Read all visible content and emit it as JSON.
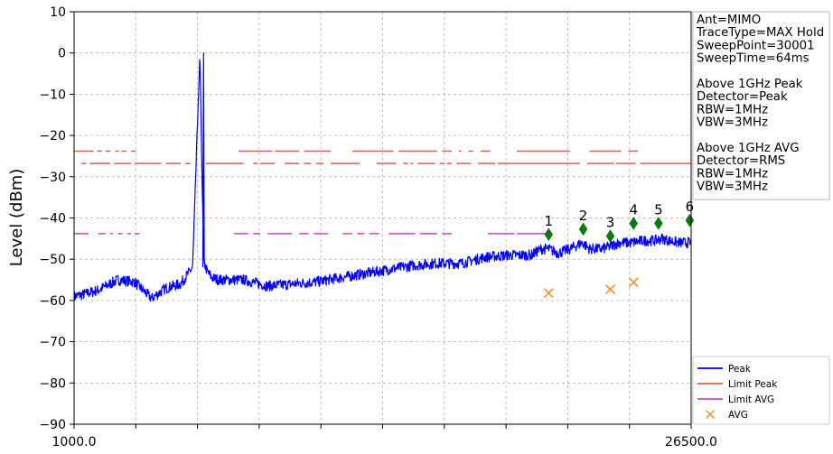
{
  "chart_data": {
    "type": "line",
    "ylabel": "Level (dBm)",
    "xlabel": "",
    "xlim": [
      1000.0,
      26500.0
    ],
    "ylim": [
      -90,
      10
    ],
    "yticks": [
      10,
      0,
      -10,
      -20,
      -30,
      -40,
      -50,
      -60,
      -70,
      -80,
      -90
    ],
    "ytick_labels": [
      "10",
      "0",
      "−10",
      "−20",
      "−30",
      "−40",
      "−50",
      "−60",
      "−70",
      "−80",
      "−90"
    ],
    "xticks": [
      1000.0,
      26500.0
    ],
    "xtick_labels": [
      "1000.0",
      "26500.0"
    ],
    "grid": true,
    "legend_position": "bottom-right",
    "colors": {
      "peak": "#0000ff",
      "limit_peak": "#ff4d4d",
      "limit_avg": "#cc44cc",
      "avg": "#ff8c1a",
      "marker": "#0a7a0a",
      "grid": "#b0b0b0"
    },
    "series": [
      {
        "name": "Peak",
        "kind": "line",
        "x": [
          1000,
          1400,
          2000,
          2800,
          3500,
          4200,
          4800,
          5400,
          5900,
          6200,
          6350,
          6500,
          6700,
          7000,
          8000,
          9000,
          10000,
          11000,
          12000,
          13000,
          14000,
          15000,
          16000,
          17000,
          18000,
          19000,
          19900,
          20300,
          20600,
          21000,
          21500,
          22000,
          22300,
          22800,
          23100,
          23500,
          24000,
          24500,
          25000,
          25300,
          25600,
          26000,
          26500
        ],
        "y": [
          -59,
          -58.5,
          -57.5,
          -55,
          -55.5,
          -59.5,
          -57,
          -56,
          -52,
          0,
          -50.5,
          -53,
          -54.5,
          -55,
          -55,
          -56.5,
          -56,
          -55.5,
          -54.5,
          -53.5,
          -52.5,
          -51.5,
          -51,
          -51,
          -49.5,
          -49,
          -49,
          -47.5,
          -47.5,
          -48.5,
          -47.5,
          -46,
          -47.5,
          -47.5,
          -47,
          -46,
          -46,
          -45.5,
          -45.5,
          -45,
          -45.5,
          -46,
          -46
        ]
      },
      {
        "name": "Limit Peak",
        "kind": "hline_segments",
        "levels": [
          -23.8,
          -26.8
        ]
      },
      {
        "name": "Limit AVG",
        "kind": "hline_segments",
        "levels": [
          -43.8
        ]
      },
      {
        "name": "AVG",
        "kind": "scatter",
        "points": [
          [
            20610,
            -58.2
          ],
          [
            23160,
            -57.3
          ],
          [
            24120,
            -55.6
          ]
        ]
      }
    ],
    "markers": [
      {
        "label": "1",
        "x": 20610,
        "y": -44.0
      },
      {
        "label": "2",
        "x": 22040,
        "y": -42.7
      },
      {
        "label": "3",
        "x": 23160,
        "y": -44.4
      },
      {
        "label": "4",
        "x": 24120,
        "y": -41.3
      },
      {
        "label": "5",
        "x": 25150,
        "y": -41.3
      },
      {
        "label": "6",
        "x": 26440,
        "y": -40.6
      }
    ],
    "legend": [
      {
        "label": "Peak",
        "key": "peak",
        "style": "line"
      },
      {
        "label": "Limit Peak",
        "key": "limit_peak",
        "style": "line"
      },
      {
        "label": "Limit AVG",
        "key": "limit_avg",
        "style": "line"
      },
      {
        "label": "AVG",
        "key": "avg",
        "style": "x"
      }
    ],
    "annotation_lines": [
      "Ant=MIMO",
      "TraceType=MAX Hold",
      "SweepPoint=30001",
      "SweepTime=64ms",
      "",
      "Above 1GHz Peak",
      "Detector=Peak",
      "RBW=1MHz",
      "VBW=3MHz",
      "",
      "Above 1GHz AVG",
      "Detector=RMS",
      "RBW=1MHz",
      "VBW=3MHz"
    ]
  }
}
